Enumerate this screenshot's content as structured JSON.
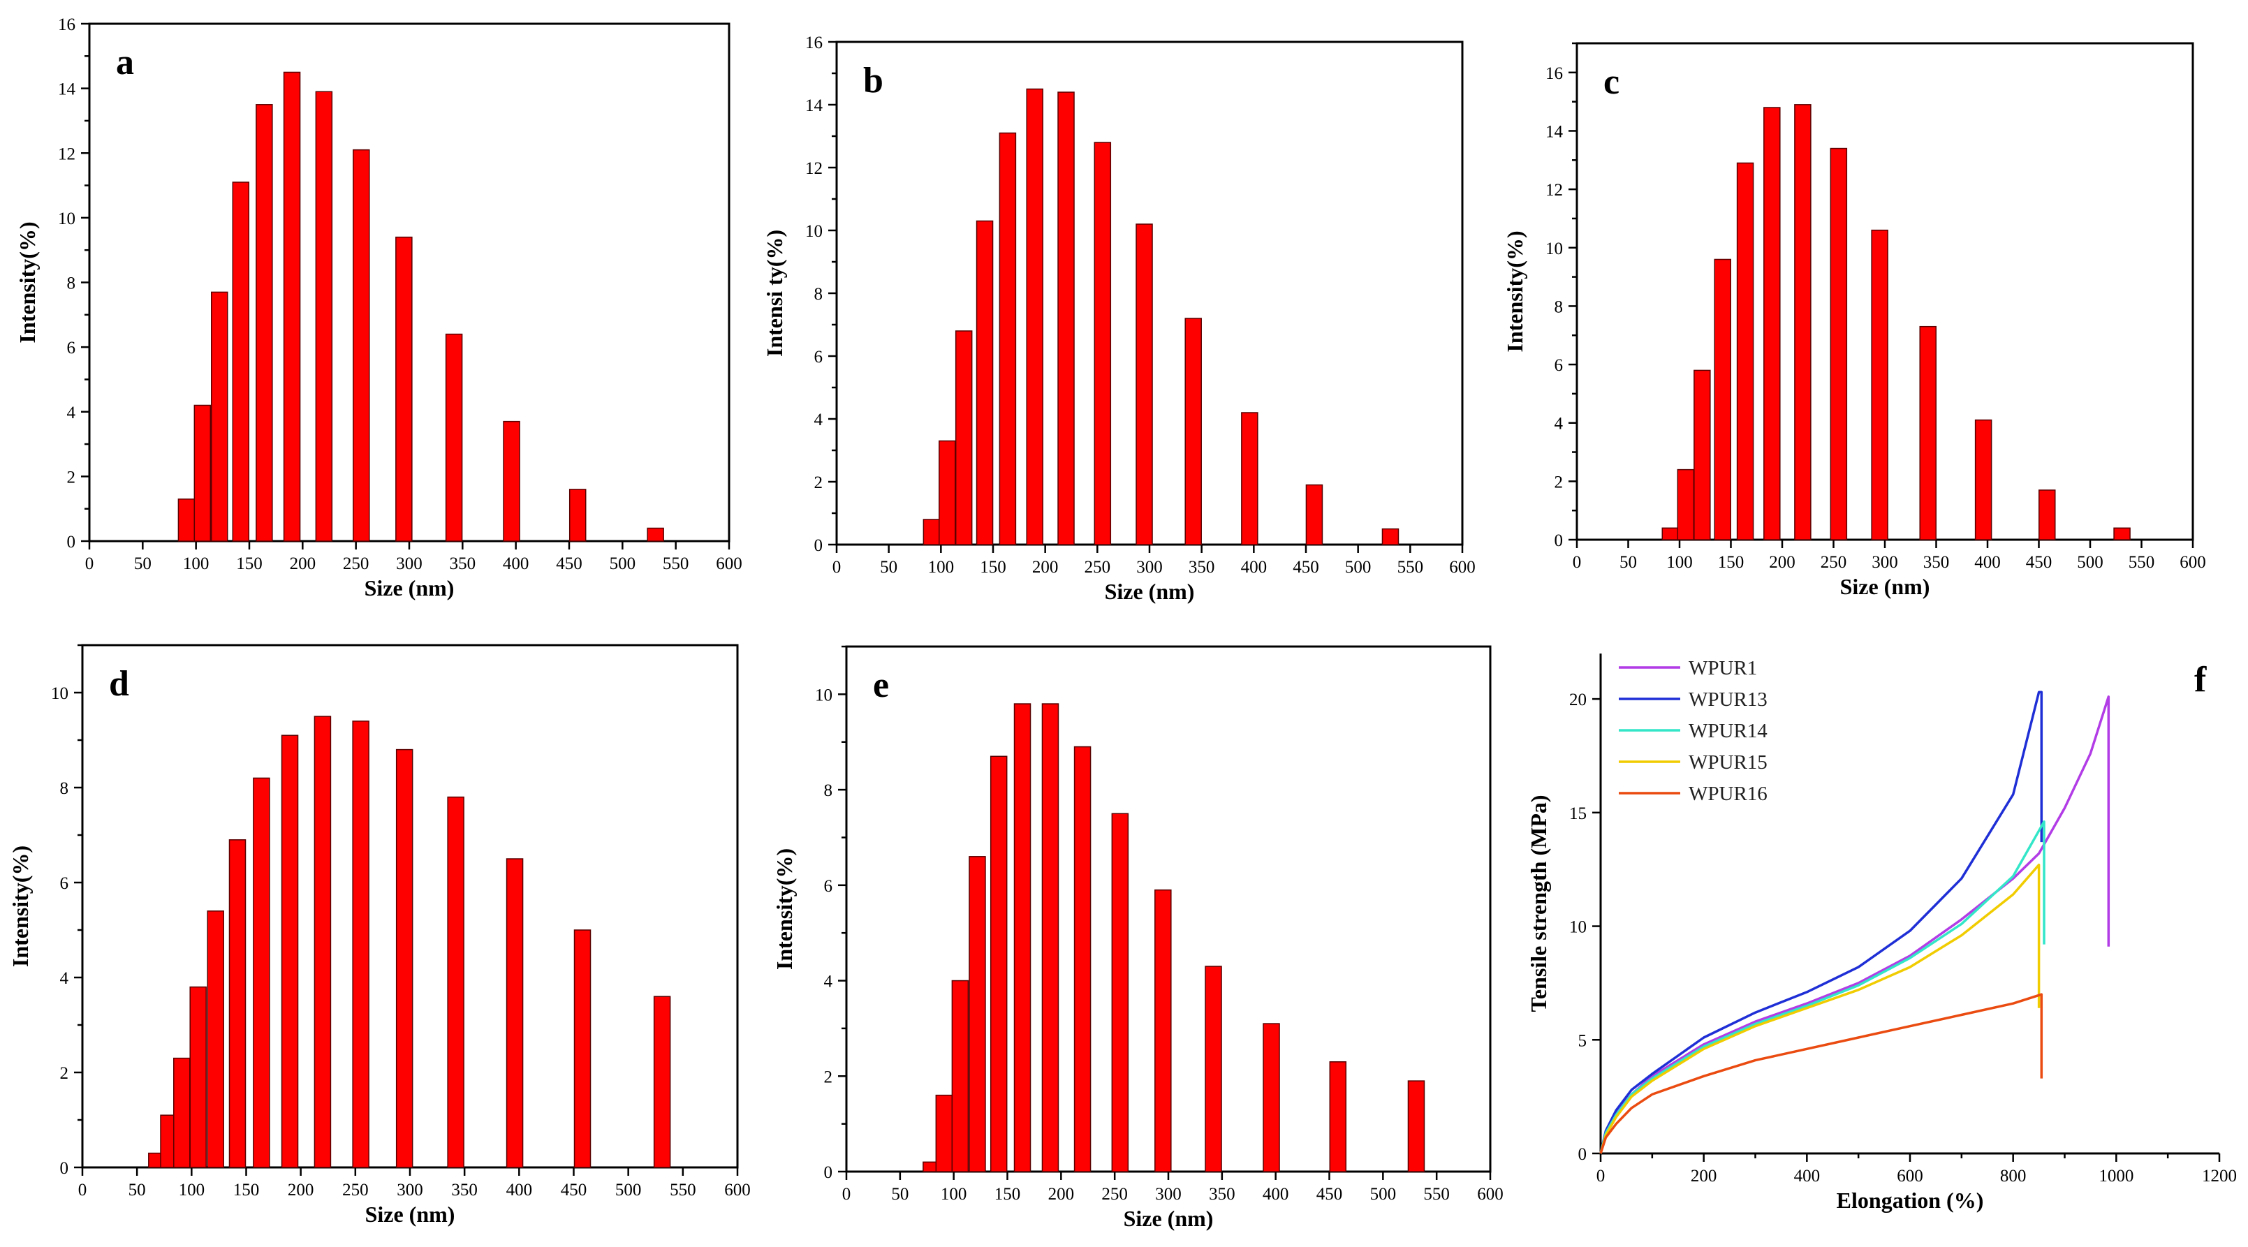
{
  "chart_data": [
    {
      "id": "a",
      "type": "bar",
      "panel_label": "a",
      "xlabel": "Size (nm)",
      "ylabel": "Intensity(%)",
      "xlim": [
        0,
        600
      ],
      "ylim": [
        0,
        16
      ],
      "xticks": [
        0,
        50,
        100,
        150,
        200,
        250,
        300,
        350,
        400,
        450,
        500,
        550,
        600
      ],
      "yticks": [
        0,
        2,
        4,
        6,
        8,
        10,
        12,
        14,
        16
      ],
      "x": [
        91,
        106,
        122,
        142,
        164,
        190,
        220,
        255,
        295,
        342,
        396,
        458,
        531
      ],
      "values": [
        1.3,
        4.2,
        7.7,
        11.1,
        13.5,
        14.5,
        13.9,
        12.1,
        9.4,
        6.4,
        3.7,
        1.6,
        0.4
      ]
    },
    {
      "id": "b",
      "type": "bar",
      "panel_label": "b",
      "xlabel": "Size (nm)",
      "ylabel": "Intensi ty(%)",
      "xlim": [
        0,
        600
      ],
      "ylim": [
        0,
        16
      ],
      "xticks": [
        0,
        50,
        100,
        150,
        200,
        250,
        300,
        350,
        400,
        450,
        500,
        550,
        600
      ],
      "yticks": [
        0,
        2,
        4,
        6,
        8,
        10,
        12,
        14,
        16
      ],
      "x": [
        91,
        106,
        122,
        142,
        164,
        190,
        220,
        255,
        295,
        342,
        396,
        458,
        531
      ],
      "values": [
        0.8,
        3.3,
        6.8,
        10.3,
        13.1,
        14.5,
        14.4,
        12.8,
        10.2,
        7.2,
        4.2,
        1.9,
        0.5
      ]
    },
    {
      "id": "c",
      "type": "bar",
      "panel_label": "c",
      "xlabel": "Size (nm)",
      "ylabel": "Intensity(%)",
      "xlim": [
        0,
        600
      ],
      "ylim": [
        0,
        17
      ],
      "xticks": [
        0,
        50,
        100,
        150,
        200,
        250,
        300,
        350,
        400,
        450,
        500,
        550,
        600
      ],
      "yticks": [
        0,
        2,
        4,
        6,
        8,
        10,
        12,
        14,
        16
      ],
      "x": [
        91,
        106,
        122,
        142,
        164,
        190,
        220,
        255,
        295,
        342,
        396,
        458,
        531
      ],
      "values": [
        0.4,
        2.4,
        5.8,
        9.6,
        12.9,
        14.8,
        14.9,
        13.4,
        10.6,
        7.3,
        4.1,
        1.7,
        0.4
      ]
    },
    {
      "id": "d",
      "type": "bar",
      "panel_label": "d",
      "xlabel": "Size (nm)",
      "ylabel": "Intensity(%)",
      "xlim": [
        0,
        600
      ],
      "ylim": [
        0,
        11
      ],
      "xticks": [
        0,
        50,
        100,
        150,
        200,
        250,
        300,
        350,
        400,
        450,
        500,
        550,
        600
      ],
      "yticks": [
        0,
        2,
        4,
        6,
        8,
        10
      ],
      "x": [
        68,
        79,
        91,
        106,
        122,
        142,
        164,
        190,
        220,
        255,
        295,
        342,
        396,
        458,
        531
      ],
      "values": [
        0.3,
        1.1,
        2.3,
        3.8,
        5.4,
        6.9,
        8.2,
        9.1,
        9.5,
        9.4,
        8.8,
        7.8,
        6.5,
        5.0,
        3.6
      ]
    },
    {
      "id": "e",
      "type": "bar",
      "panel_label": "e",
      "xlabel": "Size (nm)",
      "ylabel": "Intensity(%)",
      "xlim": [
        0,
        600
      ],
      "ylim": [
        0,
        11
      ],
      "xticks": [
        0,
        50,
        100,
        150,
        200,
        250,
        300,
        350,
        400,
        450,
        500,
        550,
        600
      ],
      "yticks": [
        0,
        2,
        4,
        6,
        8,
        10
      ],
      "x": [
        79,
        91,
        106,
        122,
        142,
        164,
        190,
        220,
        255,
        295,
        342,
        396,
        458,
        531
      ],
      "values": [
        0.2,
        1.6,
        4.0,
        6.6,
        8.7,
        9.8,
        9.8,
        8.9,
        7.5,
        5.9,
        4.3,
        3.1,
        2.3,
        1.9
      ]
    },
    {
      "id": "f",
      "type": "line",
      "panel_label": "f",
      "xlabel": "Elongation  (%)",
      "ylabel": "Tensile strength (MPa)",
      "xlim": [
        0,
        1200
      ],
      "ylim": [
        0,
        22
      ],
      "xticks": [
        0,
        200,
        400,
        600,
        800,
        1000,
        1200
      ],
      "yticks": [
        0,
        5,
        10,
        15,
        20
      ],
      "legend_position": "top-left",
      "series": [
        {
          "name": "WPUR1",
          "color": "#b23ce6",
          "points": [
            [
              0,
              0
            ],
            [
              10,
              0.9
            ],
            [
              30,
              1.8
            ],
            [
              60,
              2.6
            ],
            [
              100,
              3.4
            ],
            [
              200,
              4.8
            ],
            [
              300,
              5.8
            ],
            [
              400,
              6.6
            ],
            [
              500,
              7.5
            ],
            [
              600,
              8.7
            ],
            [
              700,
              10.3
            ],
            [
              800,
              12.1
            ],
            [
              850,
              13.2
            ],
            [
              900,
              15.2
            ],
            [
              950,
              17.6
            ],
            [
              985,
              20.1
            ],
            [
              985,
              9.1
            ]
          ]
        },
        {
          "name": "WPUR13",
          "color": "#1f2fd6",
          "points": [
            [
              0,
              0
            ],
            [
              10,
              1.0
            ],
            [
              30,
              1.9
            ],
            [
              60,
              2.8
            ],
            [
              100,
              3.5
            ],
            [
              200,
              5.1
            ],
            [
              300,
              6.2
            ],
            [
              400,
              7.1
            ],
            [
              500,
              8.2
            ],
            [
              600,
              9.8
            ],
            [
              700,
              12.1
            ],
            [
              800,
              15.8
            ],
            [
              850,
              20.3
            ],
            [
              855,
              20.3
            ],
            [
              855,
              13.7
            ]
          ]
        },
        {
          "name": "WPUR14",
          "color": "#33e6c8",
          "points": [
            [
              0,
              0
            ],
            [
              10,
              0.9
            ],
            [
              30,
              1.7
            ],
            [
              60,
              2.6
            ],
            [
              100,
              3.3
            ],
            [
              200,
              4.7
            ],
            [
              300,
              5.7
            ],
            [
              400,
              6.5
            ],
            [
              500,
              7.4
            ],
            [
              600,
              8.6
            ],
            [
              700,
              10.1
            ],
            [
              800,
              12.2
            ],
            [
              860,
              14.6
            ],
            [
              860,
              9.2
            ]
          ]
        },
        {
          "name": "WPUR15",
          "color": "#f0cc00",
          "points": [
            [
              0,
              0
            ],
            [
              10,
              0.8
            ],
            [
              30,
              1.6
            ],
            [
              60,
              2.5
            ],
            [
              100,
              3.2
            ],
            [
              200,
              4.6
            ],
            [
              300,
              5.6
            ],
            [
              400,
              6.4
            ],
            [
              500,
              7.2
            ],
            [
              600,
              8.2
            ],
            [
              700,
              9.6
            ],
            [
              800,
              11.4
            ],
            [
              850,
              12.7
            ],
            [
              850,
              6.4
            ]
          ]
        },
        {
          "name": "WPUR16",
          "color": "#ea4b10",
          "points": [
            [
              0,
              0
            ],
            [
              10,
              0.7
            ],
            [
              30,
              1.3
            ],
            [
              60,
              2.0
            ],
            [
              100,
              2.6
            ],
            [
              200,
              3.4
            ],
            [
              300,
              4.1
            ],
            [
              400,
              4.6
            ],
            [
              500,
              5.1
            ],
            [
              600,
              5.6
            ],
            [
              700,
              6.1
            ],
            [
              800,
              6.6
            ],
            [
              855,
              7.0
            ],
            [
              855,
              3.3
            ]
          ]
        }
      ]
    }
  ]
}
